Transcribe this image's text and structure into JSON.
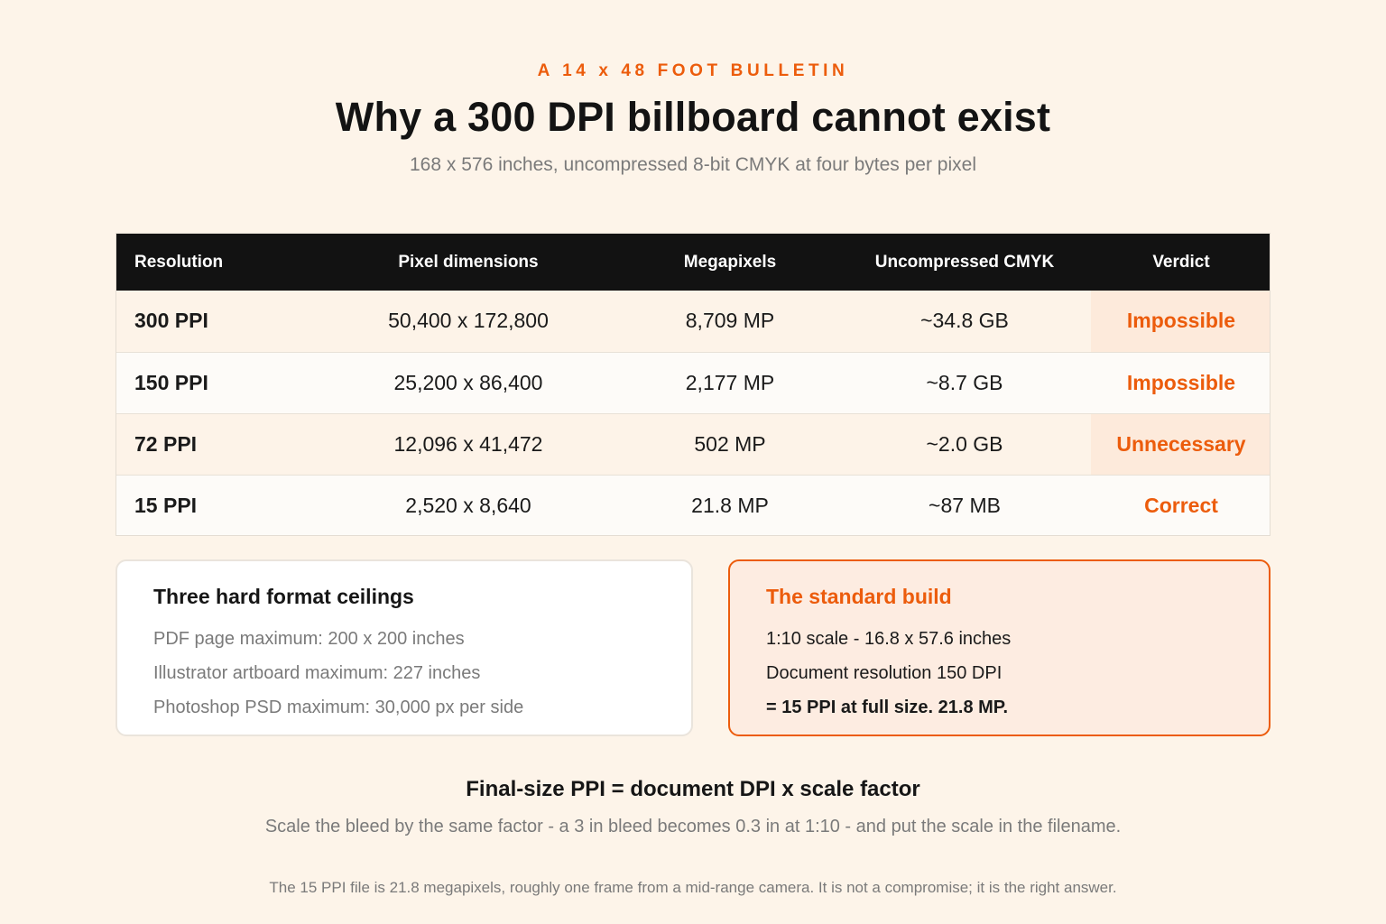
{
  "header": {
    "eyebrow": "A 14 x 48 FOOT BULLETIN",
    "title": "Why a 300 DPI billboard cannot exist",
    "subtitle": "168 x 576 inches, uncompressed 8-bit CMYK at four bytes per pixel"
  },
  "table": {
    "columns": [
      "Resolution",
      "Pixel dimensions",
      "Megapixels",
      "Uncompressed CMYK",
      "Verdict"
    ],
    "rows": [
      {
        "resolution": "300 PPI",
        "pixels": "50,400 x 172,800",
        "megapixels": "8,709 MP",
        "cmyk": "~34.8 GB",
        "verdict": "Impossible"
      },
      {
        "resolution": "150 PPI",
        "pixels": "25,200 x 86,400",
        "megapixels": "2,177 MP",
        "cmyk": "~8.7 GB",
        "verdict": "Impossible"
      },
      {
        "resolution": "72 PPI",
        "pixels": "12,096 x 41,472",
        "megapixels": "502 MP",
        "cmyk": "~2.0 GB",
        "verdict": "Unnecessary"
      },
      {
        "resolution": "15 PPI",
        "pixels": "2,520 x 8,640",
        "megapixels": "21.8 MP",
        "cmyk": "~87 MB",
        "verdict": "Correct"
      }
    ]
  },
  "ceilings": {
    "title": "Three hard format ceilings",
    "items": [
      "PDF page maximum: 200 x 200 inches",
      "Illustrator artboard maximum: 227 inches",
      "Photoshop PSD maximum: 30,000 px per side"
    ]
  },
  "standard_build": {
    "title": "The standard build",
    "lines": [
      "1:10 scale - 16.8 x 57.6 inches",
      "Document resolution 150 DPI",
      "= 15 PPI at full size. 21.8 MP."
    ]
  },
  "formula": {
    "text": "Final-size PPI = document DPI x scale factor",
    "note": "Scale the bleed by the same factor - a 3 in bleed becomes 0.3 in at 1:10 - and put the scale in the filename."
  },
  "footnote": "The 15 PPI file is 21.8 megapixels, roughly one frame from a mid-range camera. It is not a compromise; it is the right answer.",
  "colors": {
    "accent": "#ec5c0c",
    "background": "#fdf4e9",
    "table_header": "#121212"
  }
}
